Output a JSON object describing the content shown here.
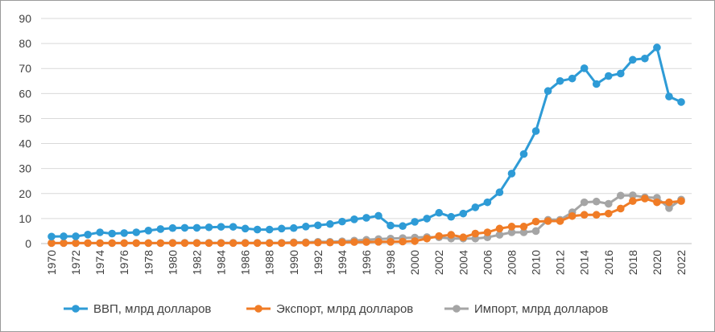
{
  "chart_data": {
    "type": "line",
    "title": "",
    "xlabel": "",
    "ylabel": "",
    "ylim": [
      0,
      90
    ],
    "yticks": [
      0,
      10,
      20,
      30,
      40,
      50,
      60,
      70,
      80,
      90
    ],
    "grid": "horizontal",
    "legend": "bottom",
    "x": [
      1970,
      1971,
      1972,
      1973,
      1974,
      1975,
      1976,
      1977,
      1978,
      1979,
      1980,
      1981,
      1982,
      1983,
      1984,
      1985,
      1986,
      1987,
      1988,
      1989,
      1990,
      1991,
      1992,
      1993,
      1994,
      1995,
      1996,
      1997,
      1998,
      1999,
      2000,
      2001,
      2002,
      2003,
      2004,
      2005,
      2006,
      2007,
      2008,
      2009,
      2010,
      2011,
      2012,
      2013,
      2014,
      2015,
      2016,
      2017,
      2018,
      2019,
      2020,
      2021,
      2022
    ],
    "xtick_labels": [
      "1970",
      "1972",
      "1974",
      "1976",
      "1978",
      "1980",
      "1982",
      "1984",
      "1986",
      "1988",
      "1990",
      "1992",
      "1994",
      "1996",
      "1998",
      "2000",
      "2002",
      "2004",
      "2006",
      "2008",
      "2010",
      "2012",
      "2014",
      "2016",
      "2018",
      "2020",
      "2022"
    ],
    "series": [
      {
        "name": "ВВП, млрд долларов",
        "color": "#2E9BD6",
        "values": [
          2.8,
          2.9,
          2.9,
          3.6,
          4.5,
          4.0,
          4.2,
          4.5,
          5.2,
          5.8,
          6.2,
          6.3,
          6.3,
          6.5,
          6.7,
          6.7,
          6.0,
          5.6,
          5.6,
          6.0,
          6.2,
          6.8,
          7.3,
          7.8,
          8.8,
          9.7,
          10.3,
          11.1,
          7.2,
          7.0,
          8.7,
          10.0,
          12.3,
          10.7,
          12.0,
          14.5,
          16.5,
          20.5,
          28.0,
          35.8,
          45.0,
          61.0,
          65.0,
          66.0,
          70.1,
          63.8,
          67.0,
          68.0,
          73.5,
          74.0,
          78.4,
          58.8,
          56.6
        ]
      },
      {
        "name": "Экспорт, млрд долларов",
        "color": "#F07C26",
        "values": [
          0.2,
          0.2,
          0.2,
          0.2,
          0.2,
          0.2,
          0.2,
          0.2,
          0.2,
          0.2,
          0.2,
          0.2,
          0.2,
          0.2,
          0.2,
          0.2,
          0.2,
          0.2,
          0.2,
          0.2,
          0.3,
          0.3,
          0.4,
          0.4,
          0.5,
          0.6,
          0.6,
          0.7,
          0.7,
          0.8,
          1.0,
          2.0,
          3.0,
          3.5,
          2.5,
          4.0,
          4.5,
          6.0,
          6.8,
          6.8,
          8.8,
          9.0,
          9.0,
          11.0,
          11.5,
          11.5,
          12.0,
          14.0,
          17.0,
          18.0,
          16.5,
          16.5,
          17.0
        ]
      },
      {
        "name": "Импорт, млрд долларов",
        "color": "#A5A5A5",
        "values": [
          0.2,
          0.2,
          0.2,
          0.2,
          0.2,
          0.2,
          0.2,
          0.2,
          0.2,
          0.2,
          0.3,
          0.3,
          0.3,
          0.3,
          0.3,
          0.3,
          0.3,
          0.3,
          0.3,
          0.3,
          0.5,
          0.5,
          0.7,
          0.7,
          0.9,
          1.2,
          1.5,
          1.8,
          2.0,
          2.2,
          2.4,
          2.6,
          2.5,
          2.0,
          2.0,
          2.0,
          2.5,
          3.5,
          4.5,
          4.5,
          5.0,
          9.5,
          9.5,
          12.5,
          16.5,
          16.8,
          15.9,
          19.2,
          19.3,
          18.5,
          18.3,
          14.2,
          17.6
        ]
      }
    ]
  }
}
